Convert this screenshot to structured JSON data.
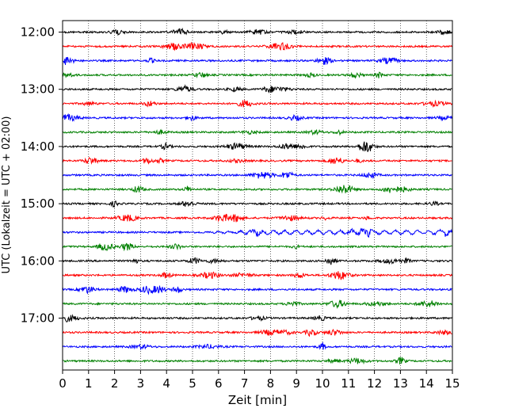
{
  "chart_data": {
    "type": "line",
    "title": "",
    "xlabel": "Zeit  [min]",
    "ylabel": "UTC (Lokalzeit = UTC + 02:00)",
    "xlim": [
      0,
      15
    ],
    "x_ticks": [
      "0",
      "1",
      "2",
      "3",
      "4",
      "5",
      "6",
      "7",
      "8",
      "9",
      "10",
      "11",
      "12",
      "13",
      "14",
      "15"
    ],
    "y_ticks": [
      "12:00",
      "13:00",
      "14:00",
      "15:00",
      "16:00",
      "17:00"
    ],
    "grid": "vertical dotted lines at each minute",
    "trace_colors": [
      "#000000",
      "#ff0000",
      "#0000ff",
      "#008000"
    ],
    "series": [
      {
        "start": "12:00",
        "color": "#000000"
      },
      {
        "start": "12:15",
        "color": "#ff0000"
      },
      {
        "start": "12:30",
        "color": "#0000ff"
      },
      {
        "start": "12:45",
        "color": "#008000"
      },
      {
        "start": "13:00",
        "color": "#000000"
      },
      {
        "start": "13:15",
        "color": "#ff0000"
      },
      {
        "start": "13:30",
        "color": "#0000ff"
      },
      {
        "start": "13:45",
        "color": "#008000"
      },
      {
        "start": "14:00",
        "color": "#000000"
      },
      {
        "start": "14:15",
        "color": "#ff0000"
      },
      {
        "start": "14:30",
        "color": "#0000ff"
      },
      {
        "start": "14:45",
        "color": "#008000"
      },
      {
        "start": "15:00",
        "color": "#000000"
      },
      {
        "start": "15:15",
        "color": "#ff0000"
      },
      {
        "start": "15:30",
        "color": "#0000ff"
      },
      {
        "start": "15:45",
        "color": "#008000"
      },
      {
        "start": "16:00",
        "color": "#000000"
      },
      {
        "start": "16:15",
        "color": "#ff0000"
      },
      {
        "start": "16:30",
        "color": "#0000ff"
      },
      {
        "start": "16:45",
        "color": "#008000"
      },
      {
        "start": "17:00",
        "color": "#000000"
      },
      {
        "start": "17:15",
        "color": "#ff0000"
      },
      {
        "start": "17:30",
        "color": "#0000ff"
      },
      {
        "start": "17:45",
        "color": "#008000"
      }
    ]
  }
}
